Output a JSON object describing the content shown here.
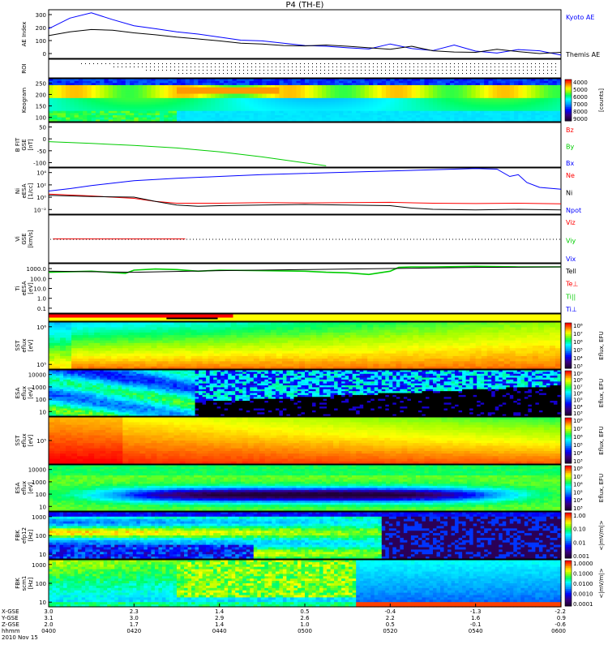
{
  "chart_data": {
    "type": "summary-plot",
    "title": "P4 (TH-E)",
    "colors": {
      "blue": "#0000ff",
      "black": "#000000",
      "red": "#ff0000",
      "green": "#00cc00",
      "panel_border": "#000000"
    },
    "time_axis": {
      "tick_times": [
        "0400",
        "0420",
        "0440",
        "0500",
        "0520",
        "0540",
        "0600"
      ],
      "rows": [
        {
          "label": "X-GSE",
          "values": [
            "3.0",
            "2.3",
            "1.4",
            "0.5",
            "-0.4",
            "-1.3",
            "-2.2"
          ]
        },
        {
          "label": "Y-GSE",
          "values": [
            "3.1",
            "3.0",
            "2.9",
            "2.6",
            "2.2",
            "1.6",
            "0.9"
          ]
        },
        {
          "label": "Z-GSE",
          "values": [
            "2.0",
            "1.7",
            "1.4",
            "1.0",
            "0.5",
            "-0.1",
            "-0.6"
          ]
        },
        {
          "label": "hhmm",
          "values": [
            "0400",
            "0420",
            "0440",
            "0500",
            "0520",
            "0540",
            "0600"
          ]
        }
      ],
      "date": "2010 Nov 15"
    },
    "panels": [
      {
        "id": "ae",
        "ylabel": [
          "AE Index"
        ],
        "yticks": [
          "0",
          "100",
          "200",
          "300"
        ],
        "ylim": [
          0,
          320
        ],
        "legend": [
          {
            "text": "Kyoto AE",
            "color": "#0000ff"
          },
          {
            "text": "Themis AE",
            "color": "#000000"
          }
        ],
        "series": [
          {
            "name": "Kyoto AE",
            "color": "#0000ff",
            "x": [
              0,
              5,
              10,
              15,
              20,
              25,
              30,
              35,
              40,
              45,
              50,
              55,
              60,
              65,
              70,
              75,
              80,
              85,
              90,
              95,
              100,
              105,
              110,
              115,
              120
            ],
            "y": [
              195,
              265,
              300,
              255,
              215,
              195,
              175,
              160,
              140,
              120,
              115,
              100,
              85,
              80,
              70,
              62,
              95,
              65,
              52,
              88,
              48,
              35,
              58,
              50,
              22
            ]
          },
          {
            "name": "Themis AE",
            "color": "#000000",
            "x": [
              0,
              5,
              10,
              15,
              20,
              25,
              30,
              35,
              40,
              45,
              50,
              55,
              60,
              65,
              70,
              75,
              80,
              85,
              90,
              95,
              100,
              105,
              110,
              115,
              120
            ],
            "y": [
              150,
              175,
              190,
              185,
              168,
              155,
              140,
              128,
              115,
              100,
              95,
              85,
              82,
              88,
              80,
              70,
              60,
              80,
              50,
              42,
              40,
              60,
              45,
              32,
              40
            ]
          }
        ]
      },
      {
        "id": "roi",
        "ylabel": [
          "ROI"
        ],
        "yticks": []
      },
      {
        "id": "keogram",
        "ylabel": [
          "Keogram"
        ],
        "yticks": [
          "100",
          "150",
          "200",
          "250"
        ],
        "colorbar": {
          "ticks": [
            "4000",
            "5000",
            "6000",
            "7000",
            "8000",
            "9000"
          ],
          "label": "[counts]"
        }
      },
      {
        "id": "bfit",
        "ylabel": [
          "B FIT",
          "GSE",
          "[nT]"
        ],
        "yticks": [
          "-100",
          "-50",
          "0",
          "50"
        ],
        "ylim": [
          -105,
          70
        ],
        "legend": [
          {
            "text": "Bz",
            "color": "#ff0000"
          },
          {
            "text": "By",
            "color": "#00cc00"
          },
          {
            "text": "Bx",
            "color": "#0000ff"
          }
        ],
        "series": [
          {
            "name": "By",
            "color": "#00cc00",
            "x": [
              0,
              10,
              20,
              30,
              40,
              50,
              60,
              65
            ],
            "y": [
              -5,
              -12,
              -20,
              -30,
              -45,
              -65,
              -88,
              -100
            ]
          }
        ]
      },
      {
        "id": "ni",
        "ylabel": [
          "Ni",
          "eESA",
          "[1/cc]"
        ],
        "yticks": [
          "10⁻²",
          "10⁰",
          "10²",
          "10⁴"
        ],
        "ylim_log": [
          -2.6,
          5
        ],
        "legend": [
          {
            "text": "Ne",
            "color": "#ff0000"
          },
          {
            "text": "Ni",
            "color": "#000000"
          },
          {
            "text": "Npot",
            "color": "#0000ff"
          }
        ],
        "series": [
          {
            "name": "Npot",
            "color": "#0000ff",
            "x": [
              0,
              5,
              10,
              15,
              20,
              25,
              30,
              40,
              50,
              60,
              70,
              80,
              90,
              95,
              100,
              105,
              108,
              110,
              112,
              115,
              120
            ],
            "y": [
              1.2,
              1.6,
              2.1,
              2.5,
              2.9,
              3.1,
              3.3,
              3.6,
              3.9,
              4.1,
              4.3,
              4.5,
              4.7,
              4.8,
              4.9,
              4.8,
              3.6,
              3.9,
              2.6,
              1.8,
              1.5
            ]
          },
          {
            "name": "Ne",
            "color": "#ff0000",
            "x": [
              0,
              10,
              20,
              25,
              30,
              40,
              50,
              60,
              70,
              80,
              90,
              100,
              110,
              120
            ],
            "y": [
              0.7,
              0.4,
              0.0,
              -0.5,
              -0.8,
              -0.8,
              -0.7,
              -0.75,
              -0.7,
              -0.65,
              -0.8,
              -0.85,
              -0.8,
              -0.9
            ]
          },
          {
            "name": "Ni",
            "color": "#000000",
            "x": [
              0,
              10,
              20,
              25,
              30,
              35,
              40,
              50,
              60,
              70,
              80,
              85,
              90,
              100,
              110,
              120
            ],
            "y": [
              0.5,
              0.3,
              0.2,
              -0.5,
              -1.1,
              -1.3,
              -1.2,
              -1.1,
              -1.0,
              -1.1,
              -1.2,
              -1.6,
              -1.8,
              -1.9,
              -1.8,
              -1.9
            ]
          }
        ]
      },
      {
        "id": "vi",
        "ylabel": [
          "Vi",
          "GSE",
          "[km/s]"
        ],
        "yticks": [],
        "legend": [
          {
            "text": "Viz",
            "color": "#ff0000"
          },
          {
            "text": "Viy",
            "color": "#00cc00"
          },
          {
            "text": "Vix",
            "color": "#0000ff"
          }
        ],
        "series": [
          {
            "name": "Viz",
            "color": "#ff0000",
            "x": [
              1,
              32
            ],
            "y": [
              0,
              0
            ]
          }
        ]
      },
      {
        "id": "ti",
        "ylabel": [
          "Ti",
          "eESA",
          "[eV]"
        ],
        "yticks": [
          "0.1",
          "1.0",
          "10.0",
          "100.0",
          "1000.0"
        ],
        "ylim_log": [
          -1.3,
          3.3
        ],
        "legend": [
          {
            "text": "Tell",
            "color": "#000000"
          },
          {
            "text": "Te⊥",
            "color": "#ff0000"
          },
          {
            "text": "Ti||",
            "color": "#00cc00"
          },
          {
            "text": "Ti⊥",
            "color": "#0000ff"
          }
        ],
        "series": [
          {
            "name": "Ti||",
            "color": "#00cc00",
            "x": [
              0,
              10,
              18,
              20,
              25,
              30,
              35,
              40,
              50,
              60,
              65,
              70,
              75,
              80,
              82,
              85,
              88,
              90,
              100,
              110,
              120
            ],
            "y": [
              2.5,
              2.6,
              2.4,
              2.7,
              2.8,
              2.75,
              2.6,
              2.7,
              2.65,
              2.6,
              2.5,
              2.45,
              2.3,
              2.6,
              2.95,
              3.0,
              3.0,
              3.0,
              3.05,
              3.0,
              3.0
            ]
          },
          {
            "name": "Tell",
            "color": "#000000",
            "x": [
              0,
              20,
              40,
              60,
              80,
              100,
              120
            ],
            "y": [
              2.6,
              2.5,
              2.65,
              2.75,
              2.85,
              2.95,
              3.0
            ]
          }
        ]
      },
      {
        "id": "modebar",
        "ylabel": [],
        "yticks": []
      },
      {
        "id": "sst_e",
        "ylabel": [
          "SST",
          "eflux",
          "[eV]"
        ],
        "yticks": [
          "10⁵",
          "10⁶"
        ],
        "colorbar": {
          "ticks": [
            "10⁸",
            "10⁷",
            "10⁶",
            "10⁵",
            "10⁴",
            "10³"
          ],
          "label": "Eflux, EFU"
        }
      },
      {
        "id": "esa_e",
        "ylabel": [
          "ESA",
          "eflux",
          "[eV]"
        ],
        "yticks": [
          "10",
          "100",
          "1000",
          "10000"
        ],
        "colorbar": {
          "ticks": [
            "10⁹",
            "10⁸",
            "10⁷",
            "10⁶",
            "10⁵",
            "10⁴",
            "10³"
          ],
          "label": "Eflux, EFU"
        }
      },
      {
        "id": "sst_i",
        "ylabel": [
          "SST",
          "eflux",
          "[eV]"
        ],
        "yticks": [
          "10⁵"
        ],
        "colorbar": {
          "ticks": [
            "10⁸",
            "10⁷",
            "10⁶",
            "10⁵",
            "10⁴",
            "10³"
          ],
          "label": "Eflux, EFU"
        }
      },
      {
        "id": "esa_i",
        "ylabel": [
          "ESA",
          "eflux",
          "[eV]"
        ],
        "yticks": [
          "10",
          "100",
          "1000",
          "10000"
        ],
        "colorbar": {
          "ticks": [
            "10⁸",
            "10⁷",
            "10⁶",
            "10⁵",
            "10⁴",
            "10³"
          ],
          "label": "Eflux, EFU"
        }
      },
      {
        "id": "fbk_e",
        "ylabel": [
          "FBK",
          "efp12",
          "[Hz]"
        ],
        "yticks": [
          "10",
          "100",
          "1000"
        ],
        "colorbar": {
          "ticks": [
            "1.00",
            "0.10",
            "0.01",
            "0.001"
          ],
          "label": "<|mV/m|>"
        }
      },
      {
        "id": "fbk_b",
        "ylabel": [
          "FBK",
          "scm1",
          "[Hz]"
        ],
        "yticks": [
          "10",
          "100",
          "1000"
        ],
        "colorbar": {
          "ticks": [
            "1.0000",
            "0.1000",
            "0.0100",
            "0.0010",
            "0.0001"
          ],
          "label": "<|mV/m|>"
        }
      }
    ]
  }
}
